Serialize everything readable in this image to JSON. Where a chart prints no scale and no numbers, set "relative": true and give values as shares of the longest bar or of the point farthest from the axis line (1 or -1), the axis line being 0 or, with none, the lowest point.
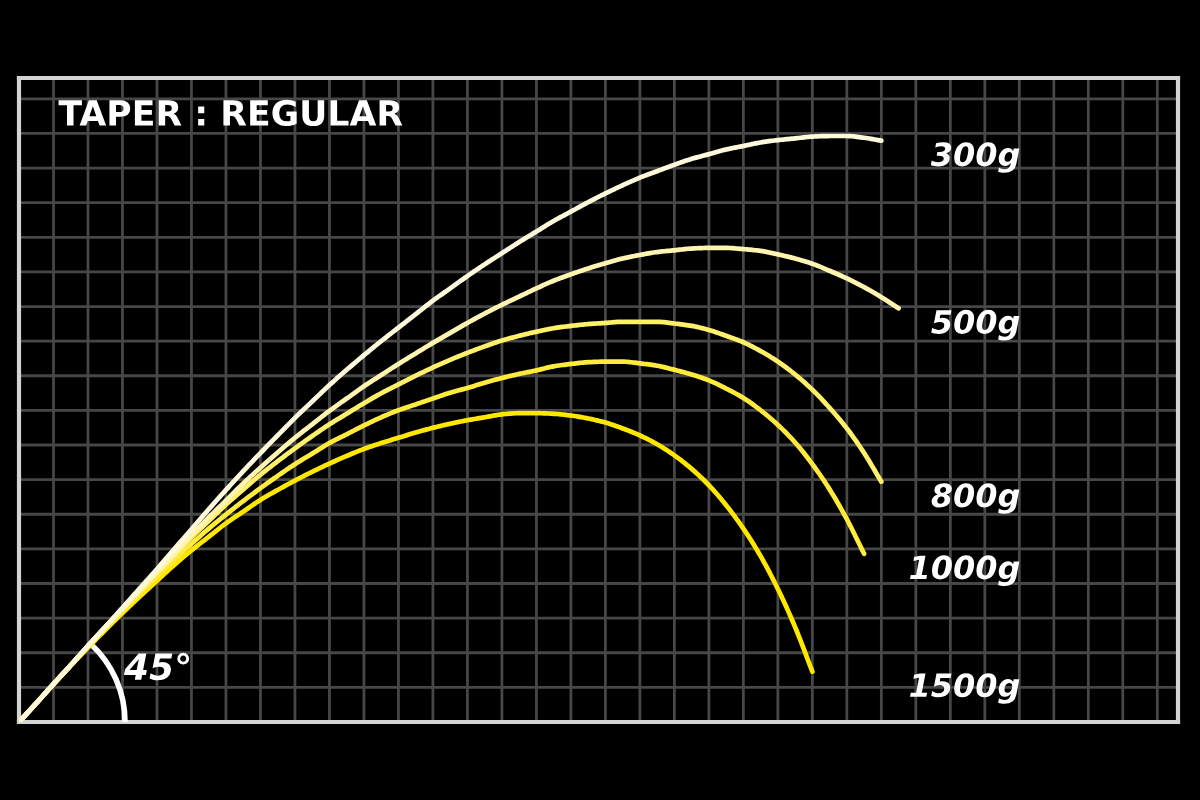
{
  "chart_data": {
    "type": "line",
    "title": "TAPER : REGULAR",
    "relative": true,
    "grid": true,
    "annotations": [
      "45°"
    ],
    "categories": [
      null,
      null,
      null,
      null,
      null,
      null,
      null,
      null,
      null,
      null,
      null,
      null,
      null,
      null,
      null,
      null,
      null,
      null,
      null,
      null,
      null,
      null,
      null,
      null,
      null,
      null,
      null,
      null,
      null,
      null,
      null,
      null,
      null,
      null,
      null,
      null,
      null,
      null,
      null,
      null,
      null,
      null,
      null,
      null,
      null,
      null,
      null,
      null,
      null,
      null,
      null,
      null
    ],
    "series": [
      {
        "name": "300g",
        "color": "#fff9dc",
        "values": [
          0,
          0.032,
          0.065,
          0.097,
          0.13,
          0.162,
          0.195,
          0.228,
          0.261,
          0.295,
          0.329,
          0.363,
          0.396,
          0.428,
          0.459,
          0.489,
          0.519,
          0.547,
          0.575,
          0.601,
          0.626,
          0.65,
          0.673,
          0.696,
          0.719,
          0.74,
          0.761,
          0.781,
          0.8,
          0.819,
          0.837,
          0.855,
          0.871,
          0.887,
          0.902,
          0.916,
          0.929,
          0.94,
          0.951,
          0.961,
          0.969,
          0.977,
          0.983,
          0.989,
          0.993,
          0.996,
          0.999,
          1.0,
          1.0,
          0.997,
          0.992,
          null
        ]
      },
      {
        "name": "500g",
        "color": "#fff5b0",
        "values": [
          0,
          0.032,
          0.065,
          0.097,
          0.13,
          0.162,
          0.193,
          0.225,
          0.256,
          0.287,
          0.319,
          0.349,
          0.378,
          0.407,
          0.434,
          0.46,
          0.485,
          0.508,
          0.531,
          0.552,
          0.573,
          0.592,
          0.611,
          0.629,
          0.647,
          0.664,
          0.681,
          0.697,
          0.712,
          0.726,
          0.74,
          0.753,
          0.764,
          0.774,
          0.783,
          0.791,
          0.797,
          0.802,
          0.805,
          0.808,
          0.809,
          0.809,
          0.807,
          0.804,
          0.798,
          0.791,
          0.782,
          0.77,
          0.757,
          0.742,
          0.725,
          0.706
        ]
      },
      {
        "name": "800g",
        "color": "#fff06a",
        "values": [
          0,
          0.032,
          0.065,
          0.097,
          0.13,
          0.162,
          0.193,
          0.224,
          0.255,
          0.285,
          0.315,
          0.343,
          0.371,
          0.397,
          0.422,
          0.445,
          0.467,
          0.488,
          0.508,
          0.526,
          0.544,
          0.561,
          0.576,
          0.591,
          0.605,
          0.618,
          0.63,
          0.641,
          0.651,
          0.659,
          0.666,
          0.672,
          0.676,
          0.679,
          0.681,
          0.683,
          0.683,
          0.683,
          0.68,
          0.676,
          0.669,
          0.659,
          0.648,
          0.633,
          0.615,
          0.593,
          0.567,
          0.536,
          0.501,
          0.459,
          0.41,
          null
        ]
      },
      {
        "name": "1000g",
        "color": "#ffeb3b",
        "values": [
          0,
          0.032,
          0.065,
          0.097,
          0.129,
          0.16,
          0.19,
          0.22,
          0.249,
          0.277,
          0.304,
          0.33,
          0.354,
          0.377,
          0.399,
          0.42,
          0.44,
          0.458,
          0.476,
          0.491,
          0.506,
          0.52,
          0.532,
          0.542,
          0.552,
          0.562,
          0.57,
          0.579,
          0.587,
          0.594,
          0.6,
          0.607,
          0.611,
          0.614,
          0.615,
          0.615,
          0.612,
          0.608,
          0.601,
          0.593,
          0.583,
          0.569,
          0.553,
          0.532,
          0.507,
          0.477,
          0.44,
          0.397,
          0.346,
          0.287,
          null,
          null
        ]
      },
      {
        "name": "1500g",
        "color": "#ffe800",
        "values": [
          0,
          0.032,
          0.064,
          0.096,
          0.127,
          0.157,
          0.186,
          0.214,
          0.241,
          0.268,
          0.293,
          0.316,
          0.339,
          0.359,
          0.379,
          0.396,
          0.412,
          0.427,
          0.441,
          0.454,
          0.466,
          0.476,
          0.485,
          0.494,
          0.502,
          0.509,
          0.515,
          0.52,
          0.525,
          0.527,
          0.527,
          0.526,
          0.523,
          0.518,
          0.511,
          0.501,
          0.489,
          0.474,
          0.455,
          0.432,
          0.404,
          0.37,
          0.33,
          0.283,
          0.227,
          0.162,
          0.086,
          null,
          null,
          null,
          null,
          null
        ]
      }
    ]
  }
}
